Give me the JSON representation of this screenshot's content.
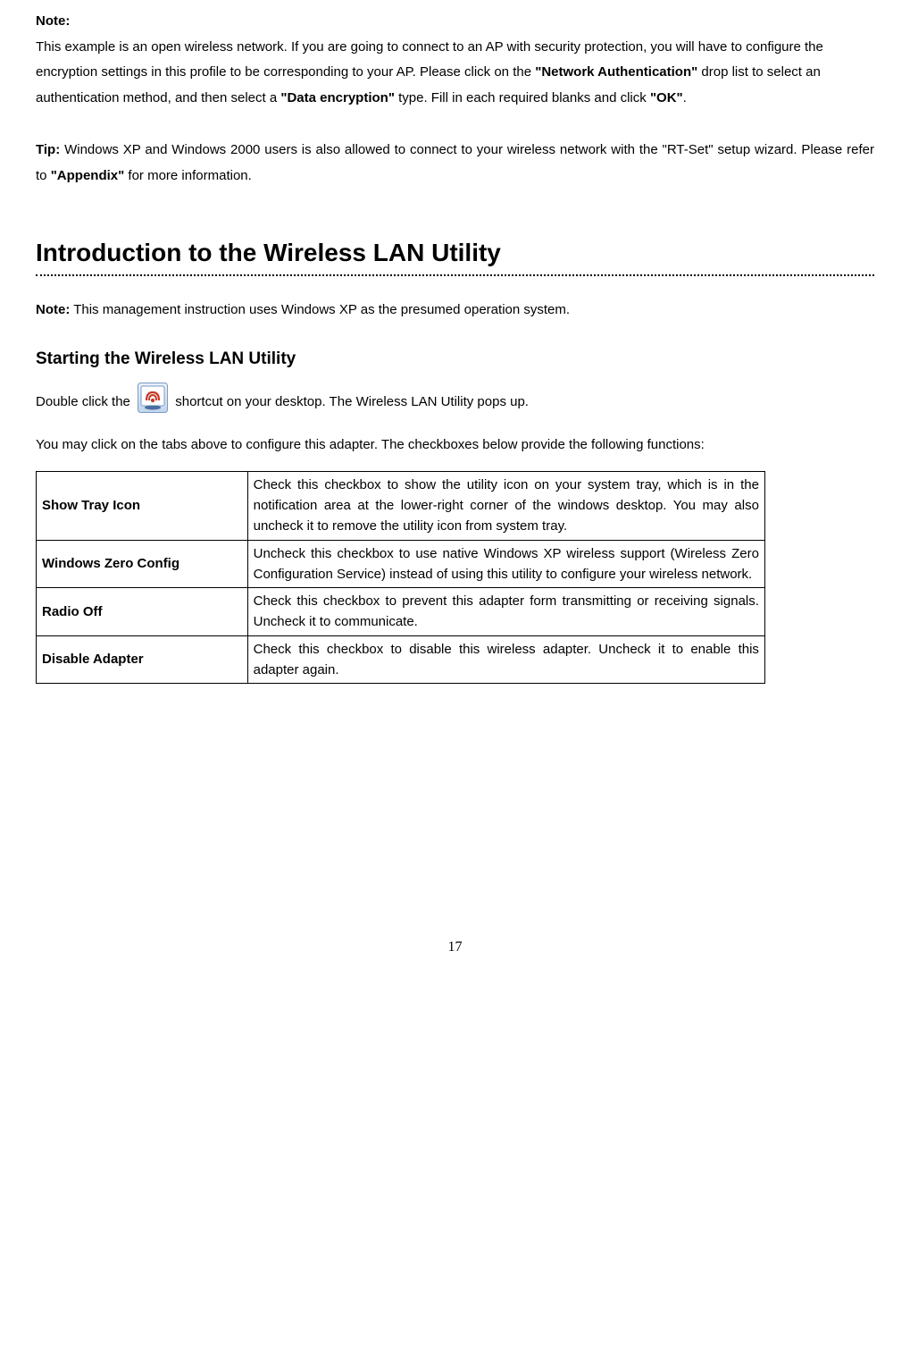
{
  "note": {
    "label": "Note:",
    "body_before_na": "This example is an open wireless network. If you are going to connect to an AP with security protection, you will have to configure the encryption settings in this profile to be corresponding to your AP. Please click on the ",
    "na_bold": "\"Network Authentication\"",
    "body_mid1": " drop list to select an authentication method, and then select a ",
    "de_bold": "\"Data encryption\"",
    "body_mid2": " type. Fill in each required blanks and click ",
    "ok_bold": "\"OK\"",
    "body_end": "."
  },
  "tip": {
    "label": "Tip:",
    "body_before": " Windows XP and Windows 2000 users is also allowed to connect to your wireless network with the \"RT-Set\" setup wizard. Please refer to ",
    "appendix_bold": "\"Appendix\"",
    "body_after": " for more information."
  },
  "section_heading": "Introduction to the Wireless LAN Utility",
  "note2": {
    "label": "Note:",
    "body": " This management instruction uses Windows XP as the presumed operation system."
  },
  "subheading": "Starting the Wireless LAN Utility",
  "start": {
    "line1_before": "Double click the ",
    "line1_after": " shortcut on your desktop. The Wireless LAN Utility pops up.",
    "line2": "You may click on the tabs above to configure this adapter. The checkboxes below provide the following functions:"
  },
  "icon": {
    "border": "#7a9ac4",
    "bg_top": "#e8f0fb",
    "bg_bot": "#c3d5ed",
    "inner_bg": "#ffffff",
    "accent": "#c63a2c",
    "body": "#4a6ea0"
  },
  "table": {
    "rows": [
      {
        "label": "Show Tray Icon",
        "desc": "Check this checkbox to show the utility icon on your system tray, which is in the notification area at the lower-right corner of the windows desktop. You may also uncheck it to remove the utility icon from system tray."
      },
      {
        "label": "Windows Zero Config",
        "desc": "Uncheck this checkbox to use native Windows XP wireless support (Wireless Zero Configuration Service) instead of using this utility to configure your wireless network."
      },
      {
        "label": "Radio Off",
        "desc": "Check this checkbox to prevent this adapter form transmitting or receiving signals. Uncheck it to communicate."
      },
      {
        "label": "Disable Adapter",
        "desc": "Check this checkbox to disable this wireless adapter. Uncheck it to enable this adapter again."
      }
    ]
  },
  "page_number": "17"
}
